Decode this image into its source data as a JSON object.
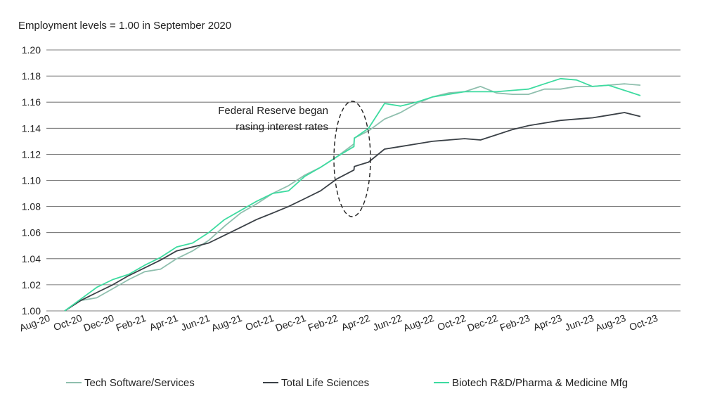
{
  "chart_data": {
    "type": "line",
    "subtitle": "Employment levels = 1.00 in September 2020",
    "ylim": [
      1.0,
      1.2
    ],
    "yticks": [
      "1.00",
      "1.02",
      "1.04",
      "1.06",
      "1.08",
      "1.10",
      "1.12",
      "1.14",
      "1.16",
      "1.18",
      "1.20"
    ],
    "x_tick_labels": [
      "Aug-20",
      "Oct-20",
      "Dec-20",
      "Feb-21",
      "Apr-21",
      "Jun-21",
      "Aug-21",
      "Oct-21",
      "Dec-21",
      "Feb-22",
      "Apr-22",
      "Jun-22",
      "Aug-22",
      "Oct-22",
      "Dec-22",
      "Feb-23",
      "Apr-23",
      "Jun-23",
      "Aug-23",
      "Oct-23"
    ],
    "x": [
      "Sep-20",
      "Oct-20",
      "Nov-20",
      "Dec-20",
      "Jan-21",
      "Feb-21",
      "Mar-21",
      "Apr-21",
      "May-21",
      "Jun-21",
      "Jul-21",
      "Aug-21",
      "Sep-21",
      "Oct-21",
      "Nov-21",
      "Dec-21",
      "Jan-22",
      "Feb-22",
      "Mar-22",
      "Apr-22",
      "May-22",
      "Jun-22",
      "Jul-22",
      "Aug-22",
      "Sep-22",
      "Oct-22",
      "Nov-22",
      "Dec-22",
      "Jan-23",
      "Feb-23",
      "Mar-23",
      "Apr-23",
      "May-23",
      "Jun-23",
      "Jul-23",
      "Aug-23",
      "Sep-23"
    ],
    "series": [
      {
        "name": "Tech Software/Services",
        "color": "#8fbfae",
        "values": [
          1.0,
          1.008,
          1.01,
          1.017,
          1.024,
          1.03,
          1.032,
          1.04,
          1.046,
          1.054,
          1.065,
          1.075,
          1.082,
          1.09,
          1.096,
          1.104,
          1.11,
          1.118,
          1.128,
          1.138,
          1.147,
          1.152,
          1.159,
          1.164,
          1.167,
          1.168,
          1.172,
          1.167,
          1.166,
          1.166,
          1.17,
          1.17,
          1.172,
          1.172,
          1.173,
          1.174,
          1.173
        ]
      },
      {
        "name": "Total Life Sciences",
        "color": "#3a4046",
        "values": [
          1.0,
          1.008,
          1.014,
          1.02,
          1.027,
          1.033,
          1.039,
          1.046,
          1.049,
          1.052,
          1.058,
          1.064,
          1.07,
          1.075,
          1.08,
          1.086,
          1.092,
          1.101,
          1.108,
          1.114,
          1.124,
          1.126,
          1.128,
          1.13,
          1.131,
          1.132,
          1.131,
          1.135,
          1.139,
          1.142,
          1.144,
          1.146,
          1.147,
          1.148,
          1.15,
          1.152,
          1.149
        ]
      },
      {
        "name": "Biotech R&D/Pharma & Medicine Mfg",
        "color": "#3ddba0",
        "values": [
          1.0,
          1.009,
          1.018,
          1.024,
          1.028,
          1.035,
          1.041,
          1.049,
          1.052,
          1.06,
          1.07,
          1.077,
          1.084,
          1.09,
          1.092,
          1.103,
          1.11,
          1.118,
          1.126,
          1.14,
          1.159,
          1.157,
          1.16,
          1.164,
          1.166,
          1.168,
          1.168,
          1.168,
          1.169,
          1.17,
          1.174,
          1.178,
          1.177,
          1.172,
          1.173,
          1.169,
          1.165
        ]
      }
    ],
    "annotation": {
      "lines": [
        "Federal Reserve began",
        "rasing interest rates"
      ],
      "marked_month": "Mar-22"
    },
    "grid": true,
    "legend_position": "bottom"
  }
}
